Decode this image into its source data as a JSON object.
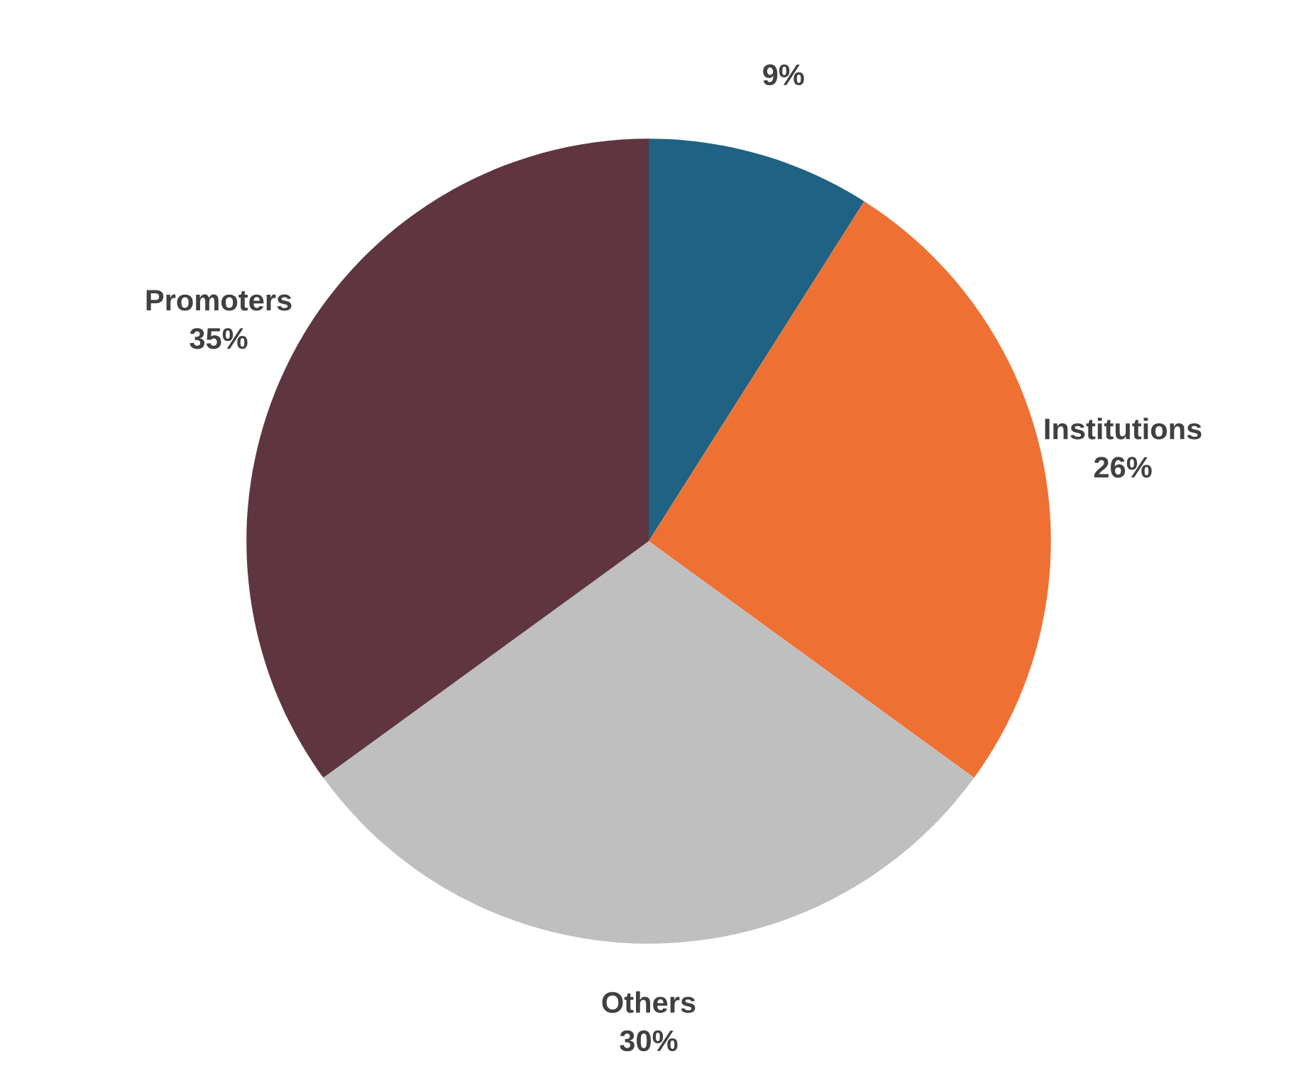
{
  "chart_data": {
    "type": "pie",
    "categories": [
      null,
      "Institutions",
      "Others",
      "Promoters"
    ],
    "values": [
      9,
      26,
      30,
      35
    ],
    "value_labels": [
      "9%",
      "26%",
      "30%",
      "35%"
    ],
    "colors": [
      "#1f6283",
      "#ee7133",
      "#bfbfbf",
      "#5f3540"
    ]
  }
}
